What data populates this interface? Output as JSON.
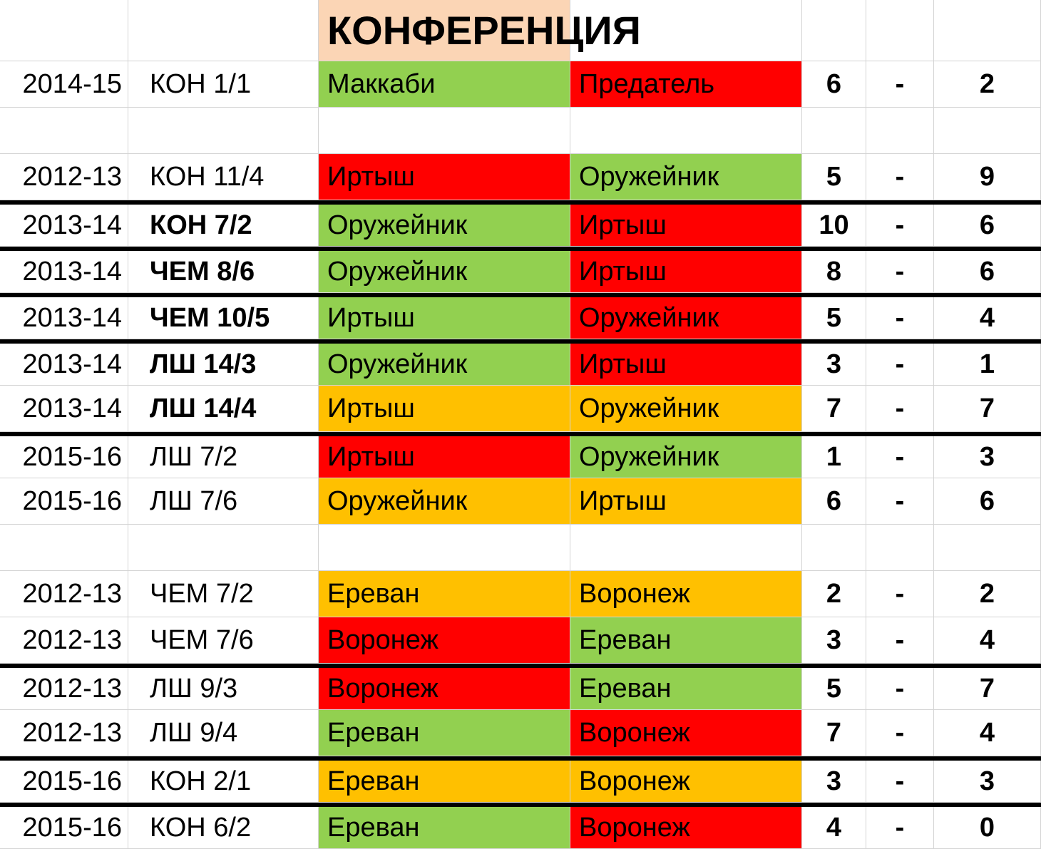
{
  "palette": {
    "win": "#92D050",
    "loss": "#FF0000",
    "draw": "#FFC000",
    "header_bg": "#FBD5B5",
    "grid": "#D4D4D4",
    "divider": "#000000"
  },
  "header": {
    "title": "КОНФЕРЕНЦИЯ"
  },
  "table": {
    "rows": [
      {
        "season": "2014-15",
        "stage": "КОН 1/1",
        "stage_bold": false,
        "home": "Маккаби",
        "home_result": "win",
        "away": "Предатель",
        "away_result": "loss",
        "score_home": "6",
        "separator": "-",
        "score_away": "2",
        "divider_above": false
      },
      {
        "empty": true,
        "divider_above": false
      },
      {
        "season": "2012-13",
        "stage": "КОН 11/4",
        "stage_bold": false,
        "home": "Иртыш",
        "home_result": "loss",
        "away": "Оружейник",
        "away_result": "win",
        "score_home": "5",
        "separator": "-",
        "score_away": "9",
        "divider_above": false
      },
      {
        "season": "2013-14",
        "stage": "КОН 7/2",
        "stage_bold": true,
        "home": "Оружейник",
        "home_result": "win",
        "away": "Иртыш",
        "away_result": "loss",
        "score_home": "10",
        "separator": "-",
        "score_away": "6",
        "divider_above": true
      },
      {
        "season": "2013-14",
        "stage": "ЧЕМ 8/6",
        "stage_bold": true,
        "home": "Оружейник",
        "home_result": "win",
        "away": "Иртыш",
        "away_result": "loss",
        "score_home": "8",
        "separator": "-",
        "score_away": "6",
        "divider_above": true
      },
      {
        "season": "2013-14",
        "stage": "ЧЕМ 10/5",
        "stage_bold": true,
        "home": "Иртыш",
        "home_result": "win",
        "away": "Оружейник",
        "away_result": "loss",
        "score_home": "5",
        "separator": "-",
        "score_away": "4",
        "divider_above": true
      },
      {
        "season": "2013-14",
        "stage": "ЛШ 14/3",
        "stage_bold": true,
        "home": "Оружейник",
        "home_result": "win",
        "away": "Иртыш",
        "away_result": "loss",
        "score_home": "3",
        "separator": "-",
        "score_away": "1",
        "divider_above": true
      },
      {
        "season": "2013-14",
        "stage": "ЛШ 14/4",
        "stage_bold": true,
        "home": "Иртыш",
        "home_result": "draw",
        "away": "Оружейник",
        "away_result": "draw",
        "score_home": "7",
        "separator": "-",
        "score_away": "7",
        "divider_above": false
      },
      {
        "season": "2015-16",
        "stage": "ЛШ 7/2",
        "stage_bold": false,
        "home": "Иртыш",
        "home_result": "loss",
        "away": "Оружейник",
        "away_result": "win",
        "score_home": "1",
        "separator": "-",
        "score_away": "3",
        "divider_above": true
      },
      {
        "season": "2015-16",
        "stage": "ЛШ 7/6",
        "stage_bold": false,
        "home": "Оружейник",
        "home_result": "draw",
        "away": "Иртыш",
        "away_result": "draw",
        "score_home": "6",
        "separator": "-",
        "score_away": "6",
        "divider_above": false
      },
      {
        "empty": true,
        "divider_above": false
      },
      {
        "season": "2012-13",
        "stage": "ЧЕМ 7/2",
        "stage_bold": false,
        "home": "Ереван",
        "home_result": "draw",
        "away": "Воронеж",
        "away_result": "draw",
        "score_home": "2",
        "separator": "-",
        "score_away": "2",
        "divider_above": false
      },
      {
        "season": "2012-13",
        "stage": "ЧЕМ 7/6",
        "stage_bold": false,
        "home": "Воронеж",
        "home_result": "loss",
        "away": "Ереван",
        "away_result": "win",
        "score_home": "3",
        "separator": "-",
        "score_away": "4",
        "divider_above": false
      },
      {
        "season": "2012-13",
        "stage": "ЛШ 9/3",
        "stage_bold": false,
        "home": "Воронеж",
        "home_result": "loss",
        "away": "Ереван",
        "away_result": "win",
        "score_home": "5",
        "separator": "-",
        "score_away": "7",
        "divider_above": true
      },
      {
        "season": "2012-13",
        "stage": "ЛШ 9/4",
        "stage_bold": false,
        "home": "Ереван",
        "home_result": "win",
        "away": "Воронеж",
        "away_result": "loss",
        "score_home": "7",
        "separator": "-",
        "score_away": "4",
        "divider_above": false
      },
      {
        "season": "2015-16",
        "stage": "КОН 2/1",
        "stage_bold": false,
        "home": "Ереван",
        "home_result": "draw",
        "away": "Воронеж",
        "away_result": "draw",
        "score_home": "3",
        "separator": "-",
        "score_away": "3",
        "divider_above": true
      },
      {
        "season": "2015-16",
        "stage": "КОН 6/2",
        "stage_bold": false,
        "home": "Ереван",
        "home_result": "win",
        "away": "Воронеж",
        "away_result": "loss",
        "score_home": "4",
        "separator": "-",
        "score_away": "0",
        "divider_above": true
      }
    ]
  }
}
